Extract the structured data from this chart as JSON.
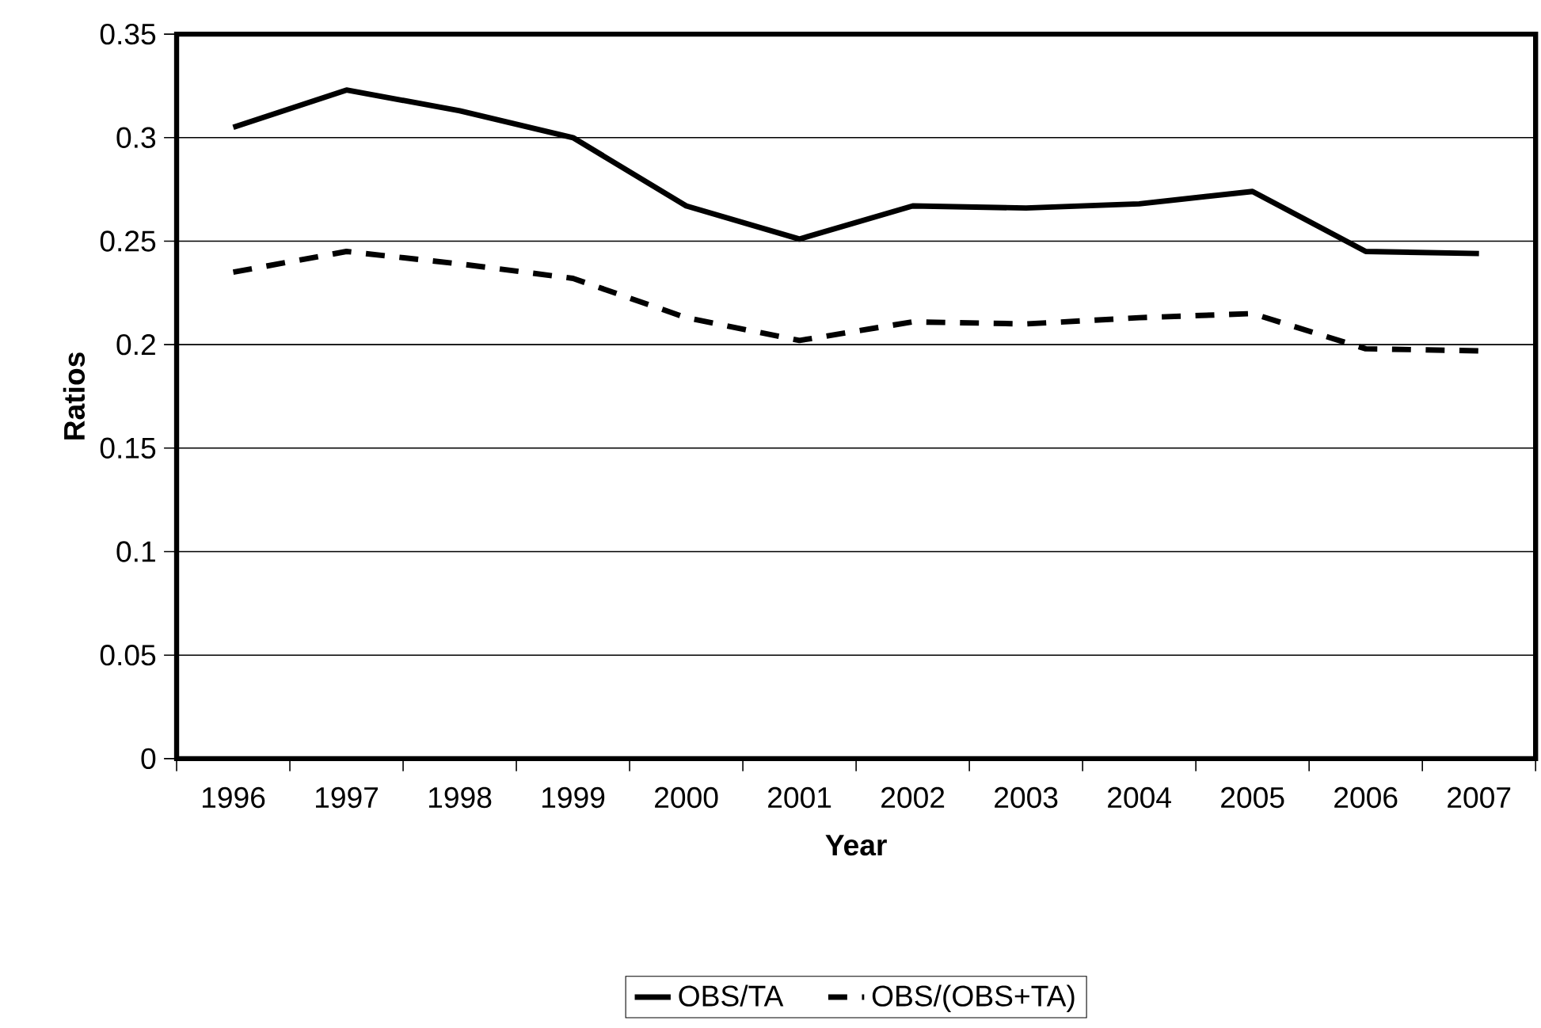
{
  "chart_data": {
    "type": "line",
    "xlabel": "Year",
    "ylabel": "Ratios",
    "categories": [
      "1996",
      "1997",
      "1998",
      "1999",
      "2000",
      "2001",
      "2002",
      "2003",
      "2004",
      "2005",
      "2006",
      "2007"
    ],
    "series": [
      {
        "name": "OBS/TA",
        "color": "#000000",
        "line_style": "solid",
        "values": [
          0.305,
          0.323,
          0.313,
          0.3,
          0.267,
          0.251,
          0.267,
          0.266,
          0.268,
          0.274,
          0.245,
          0.244
        ]
      },
      {
        "name": "OBS/(OBS+TA)",
        "color": "#000000",
        "line_style": "dashed",
        "values": [
          0.235,
          0.245,
          0.239,
          0.232,
          0.213,
          0.202,
          0.211,
          0.21,
          0.213,
          0.215,
          0.198,
          0.197
        ]
      }
    ],
    "ylim": [
      0,
      0.35
    ],
    "yticks": [
      0,
      0.05,
      0.1,
      0.15,
      0.2,
      0.25,
      0.3,
      0.35
    ],
    "grid": "y",
    "legend": "bottom",
    "marker": "none"
  }
}
